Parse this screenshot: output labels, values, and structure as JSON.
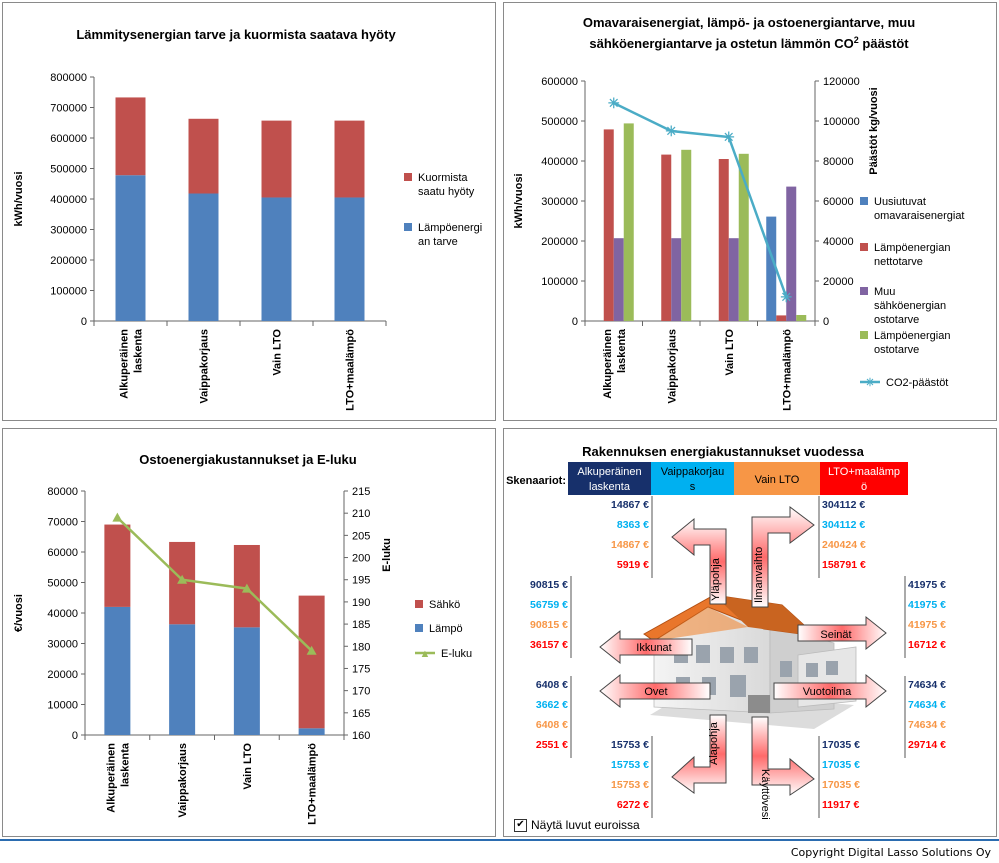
{
  "chart_data": [
    {
      "type": "bar",
      "stacked": true,
      "title": "Lämmitysenergian tarve ja kuormista saatava hyöty",
      "ylabel": "kWh/vuosi",
      "xlabel": "",
      "ylim": [
        0,
        800000
      ],
      "yticks": [
        "0",
        "100000",
        "200000",
        "300000",
        "400000",
        "500000",
        "600000",
        "700000",
        "800000"
      ],
      "categories": [
        "Alkuperäinen laskenta",
        "Vaippakorjaus",
        "Vain LTO",
        "LTO+maalämpö"
      ],
      "series": [
        {
          "name": "Lämpöenergian tarve",
          "color": "#4f81bd",
          "values": [
            478000,
            418000,
            405000,
            405000
          ]
        },
        {
          "name": "Kuormista saatu hyöty",
          "color": "#c0504d",
          "values": [
            255000,
            245000,
            252000,
            252000
          ]
        }
      ],
      "legend": [
        {
          "lines": [
            "Kuormista",
            "saatu hyöty"
          ],
          "color": "#c0504d"
        },
        {
          "lines": [
            "Lämpöenergi",
            "an tarve"
          ],
          "color": "#4f81bd"
        }
      ],
      "legend_position": "right"
    },
    {
      "type": "bar",
      "title_line1": "Omavaraisenergiat,  lämpö- ja ostoenergiantarve, muu",
      "title_line2": "sähköenergiantarve ja ostetun lämmön CO",
      "title_sup": "2",
      "title_tail": " päästöt",
      "ylabel": "kWh/vuosi",
      "y2label": "Päästöt kg/vuosi",
      "ylim": [
        0,
        600000
      ],
      "y2lim": [
        0,
        120000
      ],
      "yticks": [
        "0",
        "100000",
        "200000",
        "300000",
        "400000",
        "500000",
        "600000"
      ],
      "y2ticks": [
        "0",
        "20000",
        "40000",
        "60000",
        "80000",
        "100000",
        "120000"
      ],
      "categories": [
        "Alkuperäinen laskenta",
        "Vaippakorjaus",
        "Vain LTO",
        "LTO+maalämpö"
      ],
      "series": [
        {
          "name": "Uusiutuvat omavaraisenergiat",
          "color": "#4f81bd",
          "values": [
            0,
            0,
            0,
            261000
          ]
        },
        {
          "name": "Lämpöenergian nettotarve",
          "color": "#c0504d",
          "values": [
            479000,
            416000,
            405000,
            14000
          ]
        },
        {
          "name": "Muu sähköenergian ostotarve",
          "color": "#8064a2",
          "values": [
            207000,
            207000,
            207000,
            336000
          ]
        },
        {
          "name": "Lämpöenergian ostotarve",
          "color": "#9bbb59",
          "values": [
            494000,
            428000,
            418000,
            15000
          ]
        }
      ],
      "line": {
        "name": "CO2-päästöt",
        "color": "#4bacc6",
        "values": [
          109000,
          95000,
          92000,
          12000
        ]
      },
      "legend": [
        {
          "lines": [
            "Uusiutuvat",
            "omavaraisenergiat"
          ],
          "color": "#4f81bd",
          "kind": "box"
        },
        {
          "lines": [
            "Lämpöenergian",
            "nettotarve"
          ],
          "color": "#c0504d",
          "kind": "box"
        },
        {
          "lines": [
            "Muu",
            "sähköenergian",
            "ostotarve"
          ],
          "color": "#8064a2",
          "kind": "box"
        },
        {
          "lines": [
            "Lämpöenergian",
            "ostotarve"
          ],
          "color": "#9bbb59",
          "kind": "box"
        },
        {
          "lines": [
            "CO2-päästöt"
          ],
          "color": "#4bacc6",
          "kind": "line"
        }
      ],
      "legend_position": "right"
    },
    {
      "type": "bar",
      "stacked": true,
      "title": "Ostoenergiakustannukset ja E-luku",
      "ylabel": "€/vuosi",
      "y2label": "E-luku",
      "ylim": [
        0,
        80000
      ],
      "y2lim": [
        160,
        215
      ],
      "yticks": [
        "0",
        "10000",
        "20000",
        "30000",
        "40000",
        "50000",
        "60000",
        "70000",
        "80000"
      ],
      "y2ticks": [
        "160",
        "165",
        "170",
        "175",
        "180",
        "185",
        "190",
        "195",
        "200",
        "205",
        "210",
        "215"
      ],
      "categories": [
        "Alkuperäinen laskenta",
        "Vaippakorjaus",
        "Vain LTO",
        "LTO+maalämpö"
      ],
      "series": [
        {
          "name": "Lämpö",
          "color": "#4f81bd",
          "values": [
            42000,
            36300,
            35300,
            2200
          ]
        },
        {
          "name": "Sähkö",
          "color": "#c0504d",
          "values": [
            27000,
            27000,
            27000,
            43500
          ]
        }
      ],
      "line": {
        "name": "E-luku",
        "color": "#9bbb59",
        "values": [
          209,
          195,
          193,
          179
        ]
      },
      "legend": [
        {
          "lines": [
            "Sähkö"
          ],
          "color": "#c0504d",
          "kind": "box"
        },
        {
          "lines": [
            "Lämpö"
          ],
          "color": "#4f81bd",
          "kind": "box"
        },
        {
          "lines": [
            "E-luku"
          ],
          "color": "#9bbb59",
          "kind": "line"
        }
      ],
      "legend_position": "right"
    }
  ],
  "house": {
    "title": "Rakennuksen energiakustannukset vuodessa",
    "scenarios_label": "Skenaariot:",
    "scenarios": [
      {
        "lines": [
          "Alkuperäinen",
          "laskenta"
        ],
        "bg": "#17306b",
        "fg": "#ffffff"
      },
      {
        "lines": [
          "Vaippakorjau",
          "s"
        ],
        "bg": "#00b0f0",
        "fg": "#000000"
      },
      {
        "lines": [
          "Vain LTO"
        ],
        "bg": "#f79646",
        "fg": "#000000"
      },
      {
        "lines": [
          "LTO+maalämp",
          "ö"
        ],
        "bg": "#ff0000",
        "fg": "#ffffff"
      }
    ],
    "value_colors": [
      "#17306b",
      "#00b0f0",
      "#f79646",
      "#ff0000"
    ],
    "groups": [
      {
        "name": "Yläpohja",
        "values": [
          "14867 €",
          "8363 €",
          "14867 €",
          "5919 €"
        ]
      },
      {
        "name": "Ilmanvaihto",
        "values": [
          "304112 €",
          "304112 €",
          "240424 €",
          "158791 €"
        ]
      },
      {
        "name": "Ikkunat",
        "values": [
          "90815 €",
          "56759 €",
          "90815 €",
          "36157 €"
        ]
      },
      {
        "name": "Seinät",
        "values": [
          "41975 €",
          "41975 €",
          "41975 €",
          "16712 €"
        ]
      },
      {
        "name": "Ovet",
        "values": [
          "6408 €",
          "3662 €",
          "6408 €",
          "2551 €"
        ]
      },
      {
        "name": "Vuotoilma",
        "values": [
          "74634 €",
          "74634 €",
          "74634 €",
          "29714 €"
        ]
      },
      {
        "name": "Alapohja",
        "values": [
          "15753 €",
          "15753 €",
          "15753 €",
          "6272 €"
        ]
      },
      {
        "name": "Käyttövesi",
        "values": [
          "17035 €",
          "17035 €",
          "17035 €",
          "11917 €"
        ]
      }
    ],
    "checkbox_label": "Näytä luvut euroissa",
    "checkbox_mark": "✔"
  },
  "footer": {
    "copyright": "Copyright Digital Lasso Solutions Oy"
  }
}
